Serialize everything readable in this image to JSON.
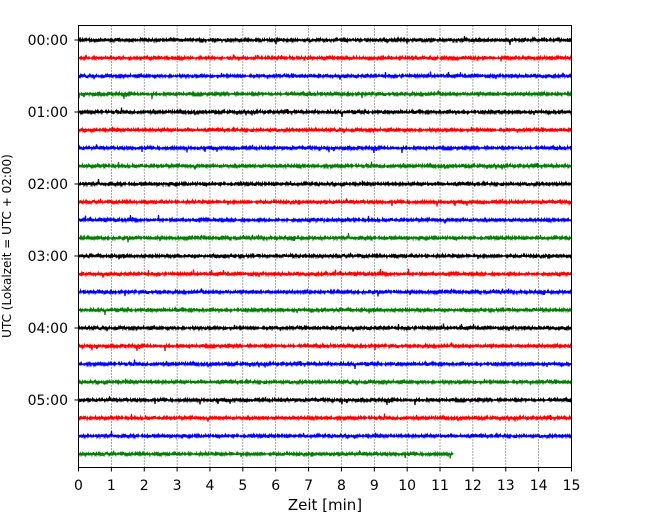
{
  "chart_data": {
    "type": "line",
    "title": "",
    "xlabel": "Zeit  [min]",
    "ylabel": "UTC (Lokalzeit = UTC + 02:00)",
    "xlim": [
      0,
      15
    ],
    "x_ticks": [
      "0",
      "1",
      "2",
      "3",
      "4",
      "5",
      "6",
      "7",
      "8",
      "9",
      "10",
      "11",
      "12",
      "13",
      "14",
      "15"
    ],
    "y_tick_labels": [
      "00:00",
      "01:00",
      "02:00",
      "03:00",
      "04:00",
      "05:00"
    ],
    "grid": "vertical dotted at each minute",
    "trace_interval_minutes": 15,
    "trace_colors": [
      "#000000",
      "#ff0000",
      "#0000ff",
      "#008000"
    ],
    "traces": [
      {
        "start": "00:00",
        "duration_min": 15
      },
      {
        "start": "00:15",
        "duration_min": 15
      },
      {
        "start": "00:30",
        "duration_min": 15
      },
      {
        "start": "00:45",
        "duration_min": 15
      },
      {
        "start": "01:00",
        "duration_min": 15
      },
      {
        "start": "01:15",
        "duration_min": 15
      },
      {
        "start": "01:30",
        "duration_min": 15
      },
      {
        "start": "01:45",
        "duration_min": 15
      },
      {
        "start": "02:00",
        "duration_min": 15
      },
      {
        "start": "02:15",
        "duration_min": 15
      },
      {
        "start": "02:30",
        "duration_min": 15
      },
      {
        "start": "02:45",
        "duration_min": 15
      },
      {
        "start": "03:00",
        "duration_min": 15
      },
      {
        "start": "03:15",
        "duration_min": 15
      },
      {
        "start": "03:30",
        "duration_min": 15
      },
      {
        "start": "03:45",
        "duration_min": 15
      },
      {
        "start": "04:00",
        "duration_min": 15
      },
      {
        "start": "04:15",
        "duration_min": 15
      },
      {
        "start": "04:30",
        "duration_min": 15
      },
      {
        "start": "04:45",
        "duration_min": 15
      },
      {
        "start": "05:00",
        "duration_min": 15
      },
      {
        "start": "05:15",
        "duration_min": 15
      },
      {
        "start": "05:30",
        "duration_min": 15
      },
      {
        "start": "05:45",
        "duration_min": 11.4
      }
    ]
  }
}
